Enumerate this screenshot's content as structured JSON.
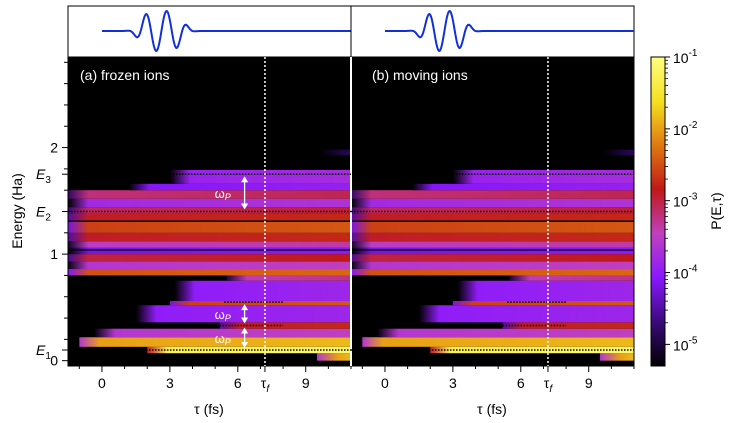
{
  "chart_data": {
    "type": "heatmap",
    "ylabel": "Energy (Ha)",
    "xlabel": "τ (fs)",
    "colorbar": {
      "label": "P(E,τ)",
      "scale": "log",
      "range": [
        5e-06,
        0.1
      ],
      "ticks": [
        {
          "base": "10",
          "exp": "-1",
          "value": 0.1
        },
        {
          "base": "10",
          "exp": "-2",
          "value": 0.01
        },
        {
          "base": "10",
          "exp": "-3",
          "value": 0.001
        },
        {
          "base": "10",
          "exp": "-4",
          "value": 0.0001
        },
        {
          "base": "10",
          "exp": "-5",
          "value": 1e-05
        }
      ],
      "colormap": [
        "#000000",
        "#3a0a7a",
        "#8a18ff",
        "#c040c0",
        "#c01818",
        "#e07a10",
        "#f5e020",
        "#ffff80"
      ]
    },
    "xlim": [
      -1.5,
      11
    ],
    "ylim": [
      -0.05,
      2.85
    ],
    "x_ticks": [
      0,
      3,
      6,
      9
    ],
    "y_ticks": [
      0,
      1,
      2
    ],
    "y_tick_labels": [
      "0",
      "1",
      "2"
    ],
    "tau_f": {
      "label": "τ",
      "sub": "f",
      "value": 7.2
    },
    "energy_levels": [
      {
        "label": "E",
        "sub": "1",
        "value": 0.1
      },
      {
        "label": "E",
        "sub": "2",
        "value": 1.4
      },
      {
        "label": "E",
        "sub": "3",
        "value": 1.75
      }
    ],
    "bands": [
      {
        "e0": 0.0,
        "e1": 0.07,
        "level": -2.0,
        "onset": 9.5
      },
      {
        "e0": 0.07,
        "e1": 0.13,
        "level": -1.3,
        "onset": 2.0
      },
      {
        "e0": 0.13,
        "e1": 0.22,
        "level": -2.0,
        "onset": -1.0
      },
      {
        "e0": 0.22,
        "e1": 0.3,
        "level": -3.6,
        "onset": -0.3
      },
      {
        "e0": 0.3,
        "e1": 0.36,
        "level": -2.9,
        "onset": 5.2
      },
      {
        "e0": 0.36,
        "e1": 0.52,
        "level": -4.0,
        "onset": 1.5
      },
      {
        "e0": 0.52,
        "e1": 0.56,
        "level": -2.6,
        "onset": 3.0
      },
      {
        "e0": 0.56,
        "e1": 0.75,
        "level": -4.0,
        "onset": 3.2
      },
      {
        "e0": 0.75,
        "e1": 0.8,
        "level": -3.4,
        "onset": 5.5
      },
      {
        "e0": 0.8,
        "e1": 0.86,
        "level": -2.5,
        "onset": -1.5
      },
      {
        "e0": 0.86,
        "e1": 0.93,
        "level": -3.6,
        "onset": -1.5
      },
      {
        "e0": 0.93,
        "e1": 1.0,
        "level": -3.0,
        "onset": -1.5
      },
      {
        "e0": 1.0,
        "e1": 1.06,
        "level": -4.2,
        "onset": -1.5
      },
      {
        "e0": 1.06,
        "e1": 1.12,
        "level": -3.5,
        "onset": -1.5
      },
      {
        "e0": 1.12,
        "e1": 1.2,
        "level": -2.9,
        "onset": -1.5
      },
      {
        "e0": 1.2,
        "e1": 1.32,
        "level": -2.6,
        "onset": -1.5
      },
      {
        "e0": 1.32,
        "e1": 1.38,
        "level": -2.9,
        "onset": -1.5
      },
      {
        "e0": 1.38,
        "e1": 1.44,
        "level": -3.1,
        "onset": -1.5
      },
      {
        "e0": 1.44,
        "e1": 1.52,
        "level": -3.8,
        "onset": -1.5
      },
      {
        "e0": 1.52,
        "e1": 1.6,
        "level": -3.2,
        "onset": -1.5
      },
      {
        "e0": 1.6,
        "e1": 1.66,
        "level": -4.1,
        "onset": 1.2
      },
      {
        "e0": 1.66,
        "e1": 1.79,
        "level": -3.9,
        "onset": 3.0
      },
      {
        "e0": 1.93,
        "e1": 1.98,
        "level": -5.0,
        "onset": 9.6
      }
    ],
    "panels": [
      {
        "title": "(a) frozen ions",
        "omega_label": "ω",
        "omega_sub": "P",
        "dotted_segments": [
          {
            "e": 0.1,
            "x0": -1.5,
            "x1": 11
          },
          {
            "e": 0.33,
            "x0": 4.8,
            "x1": 8.0
          },
          {
            "e": 0.55,
            "x0": 5.4,
            "x1": 8.0
          },
          {
            "e": 1.4,
            "x0": -1.5,
            "x1": 11
          },
          {
            "e": 1.75,
            "x0": 3.0,
            "x1": 11
          }
        ],
        "arrows": [
          {
            "from": 1.4,
            "to": 1.75,
            "x": 6.3
          },
          {
            "from": 0.33,
            "to": 0.55,
            "x": 6.3
          },
          {
            "from": 0.1,
            "to": 0.33,
            "x": 6.3
          }
        ],
        "dark_lines": [
          1.04,
          1.31
        ]
      },
      {
        "title": "(b) moving ions",
        "dotted_segments": [
          {
            "e": 0.1,
            "x0": -1.5,
            "x1": 11
          },
          {
            "e": 0.33,
            "x0": 4.8,
            "x1": 8.0
          },
          {
            "e": 0.55,
            "x0": 5.4,
            "x1": 8.0
          },
          {
            "e": 1.4,
            "x0": -1.5,
            "x1": 11
          },
          {
            "e": 1.75,
            "x0": 3.0,
            "x1": 11
          }
        ],
        "arrows": [],
        "dark_lines": [
          1.04,
          1.31
        ]
      }
    ]
  }
}
